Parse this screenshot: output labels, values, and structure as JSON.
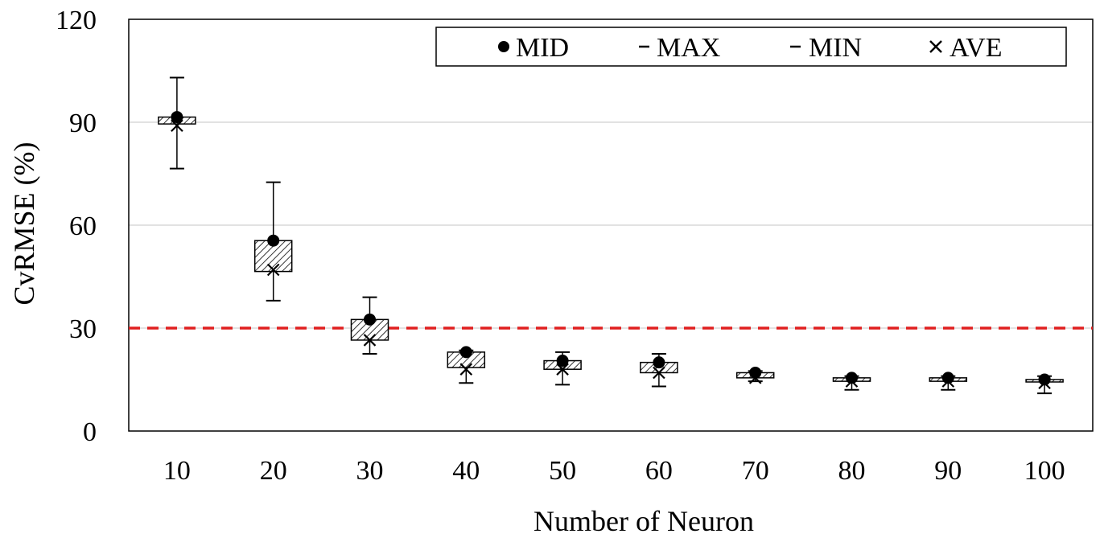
{
  "chart_data": {
    "type": "box",
    "xlabel": "Number of Neuron",
    "ylabel": "CvRMSE (%)",
    "ylim": [
      0,
      120
    ],
    "yticks": [
      0,
      30,
      60,
      90,
      120
    ],
    "categories": [
      "10",
      "20",
      "30",
      "40",
      "50",
      "60",
      "70",
      "80",
      "90",
      "100"
    ],
    "series": [
      {
        "name": "MAX",
        "values": [
          103,
          72.5,
          39,
          23.5,
          23,
          22.5,
          17.5,
          16,
          16,
          16
        ]
      },
      {
        "name": "MIN",
        "values": [
          76.5,
          38,
          22.5,
          14,
          13.5,
          13,
          14.5,
          12,
          12,
          11
        ]
      },
      {
        "name": "MID",
        "values": [
          91.5,
          55.5,
          32.5,
          23,
          20.5,
          20,
          17,
          15.5,
          15.5,
          15
        ]
      },
      {
        "name": "AVE",
        "values": [
          89,
          47,
          26.5,
          18,
          18,
          17,
          15.5,
          14.5,
          14.5,
          14
        ]
      },
      {
        "name": "box_upper",
        "values": [
          91.5,
          55.5,
          32.5,
          23,
          20.5,
          20,
          17,
          15.5,
          15.5,
          15
        ]
      },
      {
        "name": "box_lower",
        "values": [
          89.5,
          46.5,
          26.5,
          18.5,
          18,
          17,
          15.5,
          14.5,
          14.5,
          14.5
        ]
      }
    ],
    "threshold": {
      "value": 30,
      "color": "#e02020",
      "style": "dashed"
    },
    "grid": true,
    "legend": {
      "position": "top-right",
      "entries": [
        "MID",
        "MAX",
        "MIN",
        "AVE"
      ]
    }
  }
}
